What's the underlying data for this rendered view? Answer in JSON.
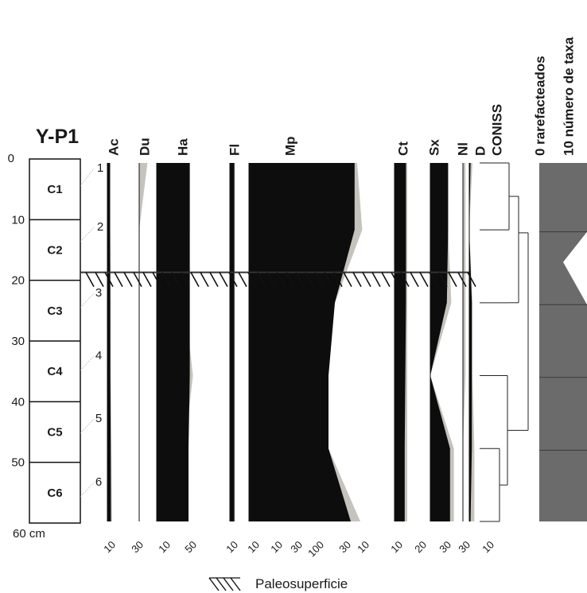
{
  "chart_data": {
    "type": "area",
    "title": "Y-P1",
    "depth_axis": {
      "unit_label": "60 cm",
      "ticks": [
        "0",
        "10",
        "20",
        "30",
        "40",
        "50"
      ],
      "range": [
        0,
        60
      ]
    },
    "core_sections": [
      "C1",
      "C2",
      "C3",
      "C4",
      "C5",
      "C6"
    ],
    "sample_labels": [
      "1",
      "2",
      "3",
      "4",
      "5",
      "6"
    ],
    "sample_depths": [
      1,
      12,
      24,
      36,
      48,
      60
    ],
    "fill_colors": {
      "taxon": "#0d0d0d",
      "exaggeration": "#c6c3bd",
      "zone_panel": "#6b6b6b"
    },
    "taxa": [
      {
        "label": "Ac",
        "ticks": [
          "10"
        ],
        "values": [
          4.3,
          4.3,
          4.5,
          4.6,
          5.2,
          5.6
        ],
        "exaggerated": [
          4.3,
          4.5,
          5.5,
          5.5,
          6.5,
          7.2
        ]
      },
      {
        "label": "Du",
        "ticks": [
          "30"
        ],
        "values": [
          0,
          0,
          0,
          0,
          0,
          0
        ],
        "exaggerated": [
          13,
          0,
          0,
          0,
          0,
          0
        ]
      },
      {
        "label": "Ha",
        "ticks": [
          "10",
          "50"
        ],
        "values": [
          52,
          52,
          52,
          52,
          50,
          50
        ],
        "exaggerated": [
          52,
          52,
          44,
          57,
          44,
          44
        ]
      },
      {
        "label": "Fl",
        "ticks": [
          "10"
        ],
        "values": [
          7,
          7,
          7,
          7,
          7,
          7
        ],
        "exaggerated": [
          8,
          8,
          8,
          8,
          8,
          8
        ]
      },
      {
        "label": "Mp",
        "ticks": [
          "10",
          "10",
          "30",
          "100",
          "30",
          "10"
        ],
        "values": [
          166,
          166,
          135,
          125,
          125,
          160
        ],
        "exaggerated": [
          170,
          178,
          135,
          125,
          125,
          175
        ]
      },
      {
        "label": "Ct",
        "ticks": [
          "10",
          "20"
        ],
        "values": [
          18,
          18,
          18,
          17,
          16,
          16
        ],
        "exaggerated": [
          20,
          20,
          20,
          20,
          20,
          20
        ]
      },
      {
        "label": "Sx",
        "ticks": [
          "30"
        ],
        "values": [
          28,
          28,
          26,
          0,
          31,
          31
        ],
        "exaggerated": [
          28,
          28,
          33,
          0,
          37,
          37
        ]
      },
      {
        "label": "Nl",
        "ticks": [],
        "values": [
          0,
          0,
          0,
          0,
          0,
          0
        ],
        "exaggerated": [
          4,
          4,
          4,
          4,
          0,
          0
        ]
      },
      {
        "label": "D",
        "ticks": [
          "30"
        ],
        "values": [
          2,
          0,
          4,
          4,
          4,
          2
        ],
        "exaggerated": [
          5,
          0,
          5,
          5,
          8,
          8
        ]
      }
    ],
    "coniss": {
      "label": "CONISS",
      "ticks": [
        "10"
      ]
    },
    "rarefaction": {
      "label": "rarefacteados",
      "tick": "0"
    },
    "taxa_number": {
      "label": "número de taxa",
      "tick": "10"
    },
    "marker": {
      "label": "Paleosuperficie",
      "depth": 20
    }
  }
}
